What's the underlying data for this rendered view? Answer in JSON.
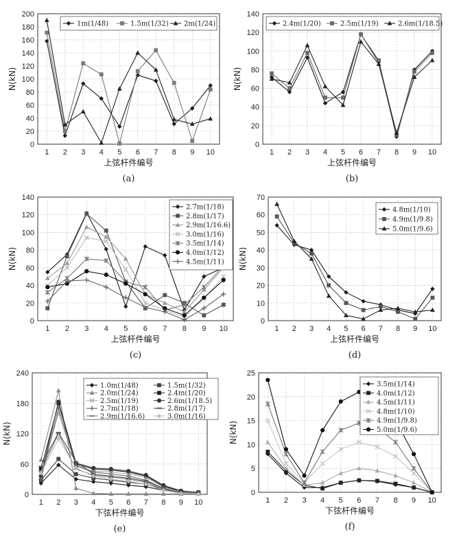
{
  "chart_data": [
    {
      "id": "a",
      "type": "line",
      "caption": "(a)",
      "xlabel": "上弦杆件编号",
      "ylabel": "N(kN)",
      "x": [
        1,
        2,
        3,
        4,
        5,
        6,
        7,
        8,
        9,
        10
      ],
      "xlim": [
        0.5,
        10.5
      ],
      "ylim": [
        0,
        200
      ],
      "yticks": [
        0,
        20,
        40,
        60,
        80,
        100,
        120,
        140,
        160,
        180,
        200
      ],
      "legend": "top-right",
      "series": [
        {
          "name": "1m(1/48)",
          "marker": "diamond",
          "color": "#1a1a1a",
          "values": [
            158,
            13,
            93,
            70,
            27,
            106,
            97,
            31,
            55,
            90
          ]
        },
        {
          "name": "1.5m(1/32)",
          "marker": "square",
          "color": "#7a7a7a",
          "values": [
            171,
            20,
            124,
            107,
            1,
            112,
            144,
            94,
            5,
            84
          ]
        },
        {
          "name": "2m(1/24)",
          "marker": "triangle",
          "color": "#222222",
          "values": [
            190,
            30,
            50,
            2,
            85,
            140,
            114,
            38,
            31,
            39
          ]
        }
      ]
    },
    {
      "id": "b",
      "type": "line",
      "caption": "(b)",
      "xlabel": "上弦杆件编号",
      "ylabel": "N(kN)",
      "x": [
        1,
        2,
        3,
        4,
        5,
        6,
        7,
        8,
        9,
        10
      ],
      "xlim": [
        0.5,
        10.5
      ],
      "ylim": [
        0,
        140
      ],
      "yticks": [
        0,
        20,
        40,
        60,
        80,
        100,
        120,
        140
      ],
      "legend": "top",
      "series": [
        {
          "name": "2.4m(1/20)",
          "marker": "diamond",
          "color": "#1a1a1a",
          "values": [
            72,
            56,
            93,
            44,
            56,
            118,
            88,
            8,
            80,
            100
          ]
        },
        {
          "name": "2.5m(1/19)",
          "marker": "square",
          "color": "#6a6a6a",
          "values": [
            76,
            60,
            98,
            50,
            50,
            118,
            90,
            10,
            78,
            98
          ]
        },
        {
          "name": "2.6m(1/18.5)",
          "marker": "triangle",
          "color": "#222222",
          "values": [
            70,
            66,
            106,
            62,
            42,
            110,
            86,
            12,
            72,
            90
          ]
        }
      ]
    },
    {
      "id": "c",
      "type": "line",
      "caption": "(c)",
      "xlabel": "上弦杆件编号",
      "ylabel": "N(kN)",
      "x": [
        1,
        2,
        3,
        4,
        5,
        6,
        7,
        8,
        9,
        10
      ],
      "xlim": [
        0.5,
        10.5
      ],
      "ylim": [
        0,
        140
      ],
      "yticks": [
        0,
        20,
        40,
        60,
        80,
        100,
        120,
        140
      ],
      "legend": "top-right",
      "series": [
        {
          "name": "2.7m(1/18)",
          "marker": "diamond",
          "color": "#1a1a1a",
          "values": [
            55,
            75,
            122,
            81,
            16,
            84,
            74,
            12,
            50,
            60
          ]
        },
        {
          "name": "2.8m(1/17)",
          "marker": "square",
          "color": "#555555",
          "values": [
            14,
            73,
            121,
            102,
            44,
            14,
            29,
            20,
            6,
            18
          ]
        },
        {
          "name": "2.9m(1/16.6)",
          "marker": "triangle",
          "color": "#9a9a9a",
          "values": [
            48,
            65,
            106,
            95,
            70,
            30,
            20,
            10,
            35,
            60
          ]
        },
        {
          "name": "3.0m(1/16)",
          "marker": "x",
          "color": "#bdbdbd",
          "values": [
            40,
            60,
            94,
            90,
            58,
            20,
            12,
            4,
            25,
            50
          ]
        },
        {
          "name": "3.5m(1/14)",
          "marker": "star",
          "color": "#777777",
          "values": [
            32,
            48,
            70,
            68,
            44,
            38,
            12,
            18,
            38,
            62
          ]
        },
        {
          "name": "4.0m(1/12)",
          "marker": "circle",
          "color": "#111111",
          "values": [
            38,
            42,
            56,
            52,
            42,
            30,
            14,
            6,
            26,
            46
          ]
        },
        {
          "name": "4.5m(1/11)",
          "marker": "plus",
          "color": "#666666",
          "values": [
            22,
            45,
            46,
            38,
            26,
            15,
            10,
            1,
            14,
            30
          ]
        }
      ]
    },
    {
      "id": "d",
      "type": "line",
      "caption": "(d)",
      "xlabel": "上弦杆件编号",
      "ylabel": "N(kN)",
      "x": [
        1,
        2,
        3,
        4,
        5,
        6,
        7,
        8,
        9,
        10
      ],
      "xlim": [
        0.5,
        10.5
      ],
      "ylim": [
        0,
        70
      ],
      "yticks": [
        0,
        10,
        20,
        30,
        40,
        50,
        60,
        70
      ],
      "legend": "top-right",
      "series": [
        {
          "name": "4.8m(1/10)",
          "marker": "diamond",
          "color": "#1a1a1a",
          "values": [
            54,
            43,
            40,
            25,
            16,
            11,
            9,
            6,
            4,
            18
          ]
        },
        {
          "name": "4.9m(1/9.8)",
          "marker": "square",
          "color": "#555555",
          "values": [
            59,
            44,
            38,
            20,
            10,
            6,
            8,
            5,
            1,
            13
          ]
        },
        {
          "name": "5.0m(1/9.6)",
          "marker": "triangle",
          "color": "#222222",
          "values": [
            66,
            45,
            35,
            14,
            3,
            1,
            6,
            7,
            5,
            6
          ]
        }
      ]
    },
    {
      "id": "e",
      "type": "line",
      "caption": "(e)",
      "xlabel": "下弦杆件编号",
      "ylabel": "N(kN)",
      "x": [
        1,
        2,
        3,
        4,
        5,
        6,
        7,
        8,
        9,
        10
      ],
      "xlim": [
        0.5,
        10.5
      ],
      "ylim": [
        0,
        240
      ],
      "yticks": [
        0,
        60,
        120,
        180,
        240
      ],
      "legend": "top-right",
      "series": [
        {
          "name": "1.0m(1/48)",
          "marker": "diamond",
          "color": "#1a1a1a",
          "values": [
            22,
            58,
            30,
            25,
            22,
            18,
            15,
            8,
            4,
            2
          ]
        },
        {
          "name": "1.5m(1/32)",
          "marker": "square",
          "color": "#444444",
          "values": [
            28,
            70,
            40,
            32,
            28,
            24,
            20,
            10,
            5,
            3
          ]
        },
        {
          "name": "2.0m(1/24)",
          "marker": "triangle",
          "color": "#888888",
          "values": [
            68,
            205,
            12,
            2,
            1,
            1,
            1,
            1,
            1,
            1
          ]
        },
        {
          "name": "2.4m(1/20)",
          "marker": "square",
          "color": "#222222",
          "values": [
            50,
            180,
            60,
            50,
            48,
            44,
            36,
            16,
            6,
            4
          ]
        },
        {
          "name": "2.5m(1/19)",
          "marker": "x",
          "color": "#aaaaaa",
          "values": [
            40,
            160,
            58,
            46,
            44,
            40,
            34,
            14,
            5,
            3
          ]
        },
        {
          "name": "2.6m(1/18.5)",
          "marker": "circle",
          "color": "#333333",
          "values": [
            36,
            183,
            62,
            52,
            50,
            46,
            38,
            18,
            7,
            4
          ]
        },
        {
          "name": "2.7m(1/18)",
          "marker": "plus",
          "color": "#666666",
          "values": [
            30,
            170,
            56,
            44,
            40,
            36,
            28,
            12,
            4,
            2
          ]
        },
        {
          "name": "2.8m(1/17)",
          "marker": "dash",
          "color": "#555555",
          "values": [
            55,
            122,
            64,
            40,
            36,
            32,
            26,
            12,
            3,
            1
          ]
        },
        {
          "name": "2.9m(1/16.6)",
          "marker": "dash",
          "color": "#777777",
          "values": [
            46,
            120,
            50,
            38,
            34,
            30,
            24,
            10,
            3,
            1
          ]
        },
        {
          "name": "3.0m(1/16)",
          "marker": "diamond",
          "color": "#bbbbbb",
          "values": [
            42,
            110,
            52,
            36,
            30,
            26,
            20,
            8,
            2,
            1
          ]
        }
      ]
    },
    {
      "id": "f",
      "type": "line",
      "caption": "(f)",
      "xlabel": "下弦杆件编号",
      "ylabel": "N(kN)",
      "x": [
        1,
        2,
        3,
        4,
        5,
        6,
        7,
        8,
        9,
        10
      ],
      "xlim": [
        0.5,
        10.5
      ],
      "ylim": [
        0,
        25
      ],
      "yticks": [
        0,
        5,
        10,
        15,
        20,
        25
      ],
      "legend": "top-right",
      "series": [
        {
          "name": "3.5m(1/14)",
          "marker": "diamond",
          "color": "#1a1a1a",
          "values": [
            8,
            4,
            1,
            1,
            2,
            2.5,
            2.3,
            1.6,
            1,
            0
          ]
        },
        {
          "name": "4.0m(1/12)",
          "marker": "square",
          "color": "#222222",
          "values": [
            8.5,
            4.5,
            1.5,
            0.8,
            2,
            2.5,
            2.4,
            1.8,
            1,
            0
          ]
        },
        {
          "name": "4.5m(1/11)",
          "marker": "triangle",
          "color": "#aaaaaa",
          "values": [
            10.5,
            5,
            1.5,
            2,
            4,
            5,
            4.5,
            3.5,
            2,
            0
          ]
        },
        {
          "name": "4.8m(1/10)",
          "marker": "x",
          "color": "#c4c4c4",
          "values": [
            15,
            6,
            2,
            6,
            9,
            10.5,
            9.5,
            7.5,
            4,
            0
          ]
        },
        {
          "name": "4.9m(1/9.8)",
          "marker": "star",
          "color": "#777777",
          "values": [
            18.5,
            8,
            2,
            8.5,
            13,
            14.5,
            13.5,
            10.5,
            5,
            0
          ]
        },
        {
          "name": "5.0m(1/9.6)",
          "marker": "circle",
          "color": "#111111",
          "values": [
            23.5,
            9,
            3.5,
            13,
            19,
            21,
            19.5,
            15,
            8,
            0
          ]
        }
      ]
    }
  ]
}
